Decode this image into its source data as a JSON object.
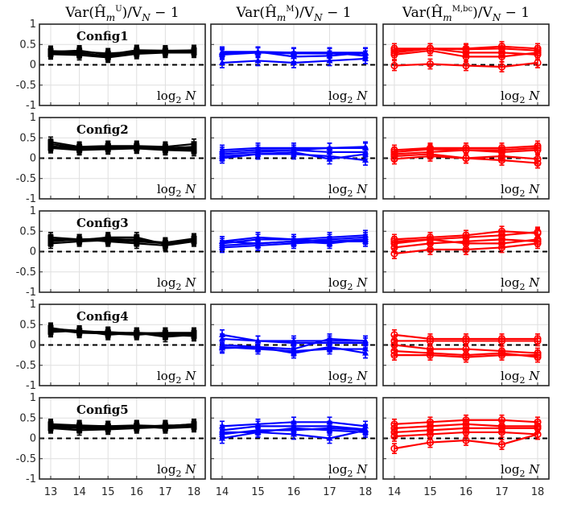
{
  "chart_data": {
    "type": "line",
    "layout": "grid 5 rows x 3 columns",
    "columns": [
      {
        "title": "Var(Ĥₘᵁ)/Vₙ − 1",
        "title_main": "Var(Ĥ",
        "title_sub": "m",
        "title_sup": "U",
        "title_tail": ")/V",
        "title_tail_sub": "N",
        "title_end": " − 1",
        "color": "#000000",
        "marker": "square",
        "x": [
          13,
          14,
          15,
          16,
          17,
          18
        ]
      },
      {
        "title": "Var(Ĥₘᴹ)/Vₙ − 1",
        "title_main": "Var(Ĥ",
        "title_sub": "m",
        "title_sup": "M",
        "title_tail": ")/V",
        "title_tail_sub": "N",
        "title_end": " − 1",
        "color": "#0000ff",
        "marker": "triangle",
        "x": [
          14,
          15,
          16,
          17,
          18
        ]
      },
      {
        "title": "Var(Ĥₘᴹ˒ᵇᶜ)/Vₙ − 1",
        "title_main": "Var(Ĥ",
        "title_sub": "m",
        "title_sup": "M,bc",
        "title_tail": ")/V",
        "title_tail_sub": "N",
        "title_end": " − 1",
        "color": "#ff0000",
        "marker": "circle",
        "x": [
          14,
          15,
          16,
          17,
          18
        ]
      }
    ],
    "rows": [
      "Config1",
      "Config2",
      "Config3",
      "Config4",
      "Config5"
    ],
    "xlabel_main": "log",
    "xlabel_sub": "2",
    "xlabel_var": " N",
    "ylim": [
      -1,
      1
    ],
    "yticks": [
      "1",
      "0.5",
      "0",
      "-0.5",
      "-1"
    ],
    "yticks_values": [
      1,
      0.5,
      0,
      -0.5,
      -1
    ],
    "grid": true,
    "reference_line": {
      "y": 0,
      "style": "dashed"
    },
    "panels": [
      [
        {
          "series": [
            [
              0.28,
              0.3,
              0.2,
              0.3,
              0.32,
              0.32
            ],
            [
              0.32,
              0.35,
              0.25,
              0.36,
              0.35,
              0.35
            ],
            [
              0.26,
              0.24,
              0.18,
              0.27,
              0.3,
              0.3
            ],
            [
              0.3,
              0.28,
              0.22,
              0.34,
              0.34,
              0.36
            ],
            [
              0.34,
              0.32,
              0.28,
              0.32,
              0.33,
              0.34
            ]
          ],
          "err": 0.12
        },
        {
          "series": [
            [
              0.3,
              0.32,
              0.3,
              0.3,
              0.3
            ],
            [
              0.28,
              0.3,
              0.28,
              0.28,
              0.28
            ],
            [
              0.05,
              0.1,
              0.05,
              0.1,
              0.15
            ],
            [
              0.32,
              0.32,
              0.2,
              0.22,
              0.3
            ],
            [
              0.25,
              0.3,
              0.3,
              0.3,
              0.22
            ]
          ],
          "err": 0.12
        },
        {
          "series": [
            [
              0.35,
              0.4,
              0.4,
              0.45,
              0.4
            ],
            [
              0.25,
              0.35,
              0.2,
              0.2,
              0.3
            ],
            [
              -0.02,
              0.02,
              -0.02,
              -0.05,
              0.05
            ],
            [
              0.3,
              0.4,
              0.3,
              0.3,
              0.25
            ],
            [
              0.4,
              0.4,
              0.38,
              0.4,
              0.35
            ]
          ],
          "err": 0.12
        }
      ],
      [
        {
          "series": [
            [
              0.35,
              0.25,
              0.28,
              0.28,
              0.25,
              0.25
            ],
            [
              0.4,
              0.28,
              0.3,
              0.3,
              0.28,
              0.35
            ],
            [
              0.3,
              0.22,
              0.25,
              0.25,
              0.22,
              0.22
            ],
            [
              0.25,
              0.2,
              0.22,
              0.24,
              0.2,
              0.18
            ],
            [
              0.28,
              0.26,
              0.3,
              0.25,
              0.25,
              0.28
            ]
          ],
          "err": 0.12
        },
        {
          "series": [
            [
              0.2,
              0.25,
              0.25,
              0.25,
              0.25
            ],
            [
              0.15,
              0.2,
              0.2,
              0.15,
              0.15
            ],
            [
              0.05,
              0.1,
              0.15,
              -0.02,
              0.1
            ],
            [
              0.1,
              0.15,
              0.2,
              0.25,
              0.28
            ],
            [
              0.0,
              0.1,
              0.1,
              0.05,
              -0.05
            ]
          ],
          "err": 0.12
        },
        {
          "series": [
            [
              0.2,
              0.25,
              0.25,
              0.25,
              0.3
            ],
            [
              0.15,
              0.22,
              0.2,
              0.2,
              0.25
            ],
            [
              0.1,
              0.15,
              0.2,
              0.15,
              0.2
            ],
            [
              -0.02,
              0.05,
              0.0,
              -0.05,
              -0.12
            ],
            [
              0.05,
              0.1,
              0.0,
              0.05,
              -0.02
            ]
          ],
          "err": 0.12
        }
      ],
      [
        {
          "series": [
            [
              0.35,
              0.3,
              0.3,
              0.3,
              0.2,
              0.3
            ],
            [
              0.3,
              0.28,
              0.35,
              0.35,
              0.18,
              0.28
            ],
            [
              0.25,
              0.3,
              0.25,
              0.2,
              0.15,
              0.25
            ],
            [
              0.2,
              0.25,
              0.28,
              0.25,
              0.2,
              0.3
            ],
            [
              0.3,
              0.3,
              0.32,
              0.28,
              0.22,
              0.32
            ]
          ],
          "err": 0.12
        },
        {
          "series": [
            [
              0.25,
              0.35,
              0.3,
              0.35,
              0.4
            ],
            [
              0.2,
              0.3,
              0.3,
              0.25,
              0.3
            ],
            [
              0.1,
              0.15,
              0.2,
              0.25,
              0.25
            ],
            [
              0.25,
              0.2,
              0.25,
              0.2,
              0.3
            ],
            [
              0.15,
              0.2,
              0.25,
              0.3,
              0.35
            ]
          ],
          "err": 0.12
        },
        {
          "series": [
            [
              0.3,
              0.35,
              0.4,
              0.5,
              0.45
            ],
            [
              0.2,
              0.3,
              0.35,
              0.4,
              0.48
            ],
            [
              0.1,
              0.2,
              0.25,
              0.3,
              0.25
            ],
            [
              -0.05,
              0.05,
              0.05,
              0.1,
              0.2
            ],
            [
              0.25,
              0.3,
              0.2,
              0.2,
              0.3
            ]
          ],
          "err": 0.12
        }
      ],
      [
        {
          "series": [
            [
              0.4,
              0.35,
              0.3,
              0.3,
              0.28,
              0.28
            ],
            [
              0.35,
              0.33,
              0.32,
              0.28,
              0.25,
              0.22
            ],
            [
              0.38,
              0.3,
              0.28,
              0.25,
              0.3,
              0.3
            ],
            [
              0.32,
              0.35,
              0.25,
              0.3,
              0.2,
              0.25
            ],
            [
              0.42,
              0.32,
              0.3,
              0.28,
              0.3,
              0.25
            ]
          ],
          "err": 0.12
        },
        {
          "series": [
            [
              0.25,
              0.1,
              0.1,
              0.1,
              0.1
            ],
            [
              0.15,
              0.1,
              0.05,
              0.05,
              0.05
            ],
            [
              -0.05,
              -0.1,
              -0.15,
              -0.1,
              -0.1
            ],
            [
              -0.08,
              -0.05,
              -0.2,
              -0.05,
              -0.2
            ],
            [
              0.0,
              -0.05,
              -0.1,
              0.15,
              0.1
            ]
          ],
          "err": 0.12
        },
        {
          "series": [
            [
              0.25,
              0.15,
              0.15,
              0.15,
              0.15
            ],
            [
              0.1,
              0.1,
              0.1,
              0.1,
              0.1
            ],
            [
              0.0,
              -0.1,
              -0.1,
              -0.15,
              -0.2
            ],
            [
              -0.15,
              -0.2,
              -0.25,
              -0.2,
              -0.3
            ],
            [
              -0.25,
              -0.25,
              -0.3,
              -0.25,
              -0.25
            ]
          ],
          "err": 0.12
        }
      ],
      [
        {
          "series": [
            [
              0.3,
              0.28,
              0.28,
              0.3,
              0.3,
              0.35
            ],
            [
              0.25,
              0.2,
              0.22,
              0.25,
              0.28,
              0.3
            ],
            [
              0.32,
              0.3,
              0.3,
              0.28,
              0.32,
              0.32
            ],
            [
              0.28,
              0.25,
              0.25,
              0.3,
              0.25,
              0.28
            ],
            [
              0.35,
              0.32,
              0.3,
              0.32,
              0.3,
              0.35
            ]
          ],
          "err": 0.12
        },
        {
          "series": [
            [
              0.3,
              0.35,
              0.4,
              0.4,
              0.3
            ],
            [
              0.2,
              0.3,
              0.3,
              0.3,
              0.22
            ],
            [
              0.1,
              0.2,
              0.2,
              0.25,
              0.2
            ],
            [
              0.15,
              0.15,
              0.25,
              0.2,
              0.15
            ],
            [
              0.0,
              0.15,
              0.1,
              0.0,
              0.2
            ]
          ],
          "err": 0.12
        },
        {
          "series": [
            [
              0.35,
              0.4,
              0.45,
              0.45,
              0.4
            ],
            [
              0.25,
              0.3,
              0.35,
              0.3,
              0.3
            ],
            [
              0.15,
              0.2,
              0.25,
              0.25,
              0.25
            ],
            [
              0.05,
              0.1,
              0.15,
              0.15,
              0.1
            ],
            [
              -0.25,
              -0.1,
              -0.05,
              -0.15,
              0.1
            ]
          ],
          "err": 0.12
        }
      ]
    ]
  }
}
